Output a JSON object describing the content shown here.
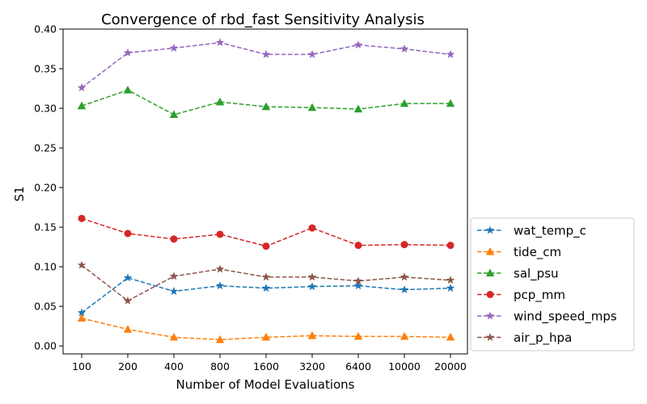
{
  "chart_data": {
    "type": "line",
    "title": "Convergence of rbd_fast Sensitivity Analysis",
    "xlabel": "Number of Model Evaluations",
    "ylabel": "S1",
    "categories": [
      "100",
      "200",
      "400",
      "800",
      "1600",
      "3200",
      "6400",
      "10000",
      "20000"
    ],
    "ylim": [
      -0.01,
      0.4
    ],
    "yticks": [
      "0.00",
      "0.05",
      "0.10",
      "0.15",
      "0.20",
      "0.25",
      "0.30",
      "0.35",
      "0.40"
    ],
    "grid": false,
    "legend_position": "lower-right-outside",
    "series": [
      {
        "name": "wat_temp_c",
        "color": "#1f77b4",
        "marker": "star",
        "values": [
          0.042,
          0.086,
          0.069,
          0.076,
          0.073,
          0.075,
          0.076,
          0.071,
          0.073
        ]
      },
      {
        "name": "tide_cm",
        "color": "#ff7f0e",
        "marker": "triangle",
        "values": [
          0.035,
          0.021,
          0.011,
          0.008,
          0.011,
          0.013,
          0.012,
          0.012,
          0.011
        ]
      },
      {
        "name": "sal_psu",
        "color": "#2ca02c",
        "marker": "triangle",
        "values": [
          0.303,
          0.323,
          0.292,
          0.308,
          0.302,
          0.301,
          0.299,
          0.306,
          0.306
        ]
      },
      {
        "name": "pcp_mm",
        "color": "#d62728",
        "marker": "circle",
        "values": [
          0.161,
          0.142,
          0.135,
          0.141,
          0.126,
          0.149,
          0.127,
          0.128,
          0.127
        ]
      },
      {
        "name": "wind_speed_mps",
        "color": "#9467bd",
        "marker": "star",
        "values": [
          0.326,
          0.37,
          0.376,
          0.383,
          0.368,
          0.368,
          0.38,
          0.375,
          0.368
        ]
      },
      {
        "name": "air_p_hpa",
        "color": "#8c564b",
        "marker": "star",
        "values": [
          0.102,
          0.057,
          0.088,
          0.097,
          0.087,
          0.087,
          0.082,
          0.087,
          0.083
        ]
      }
    ]
  }
}
